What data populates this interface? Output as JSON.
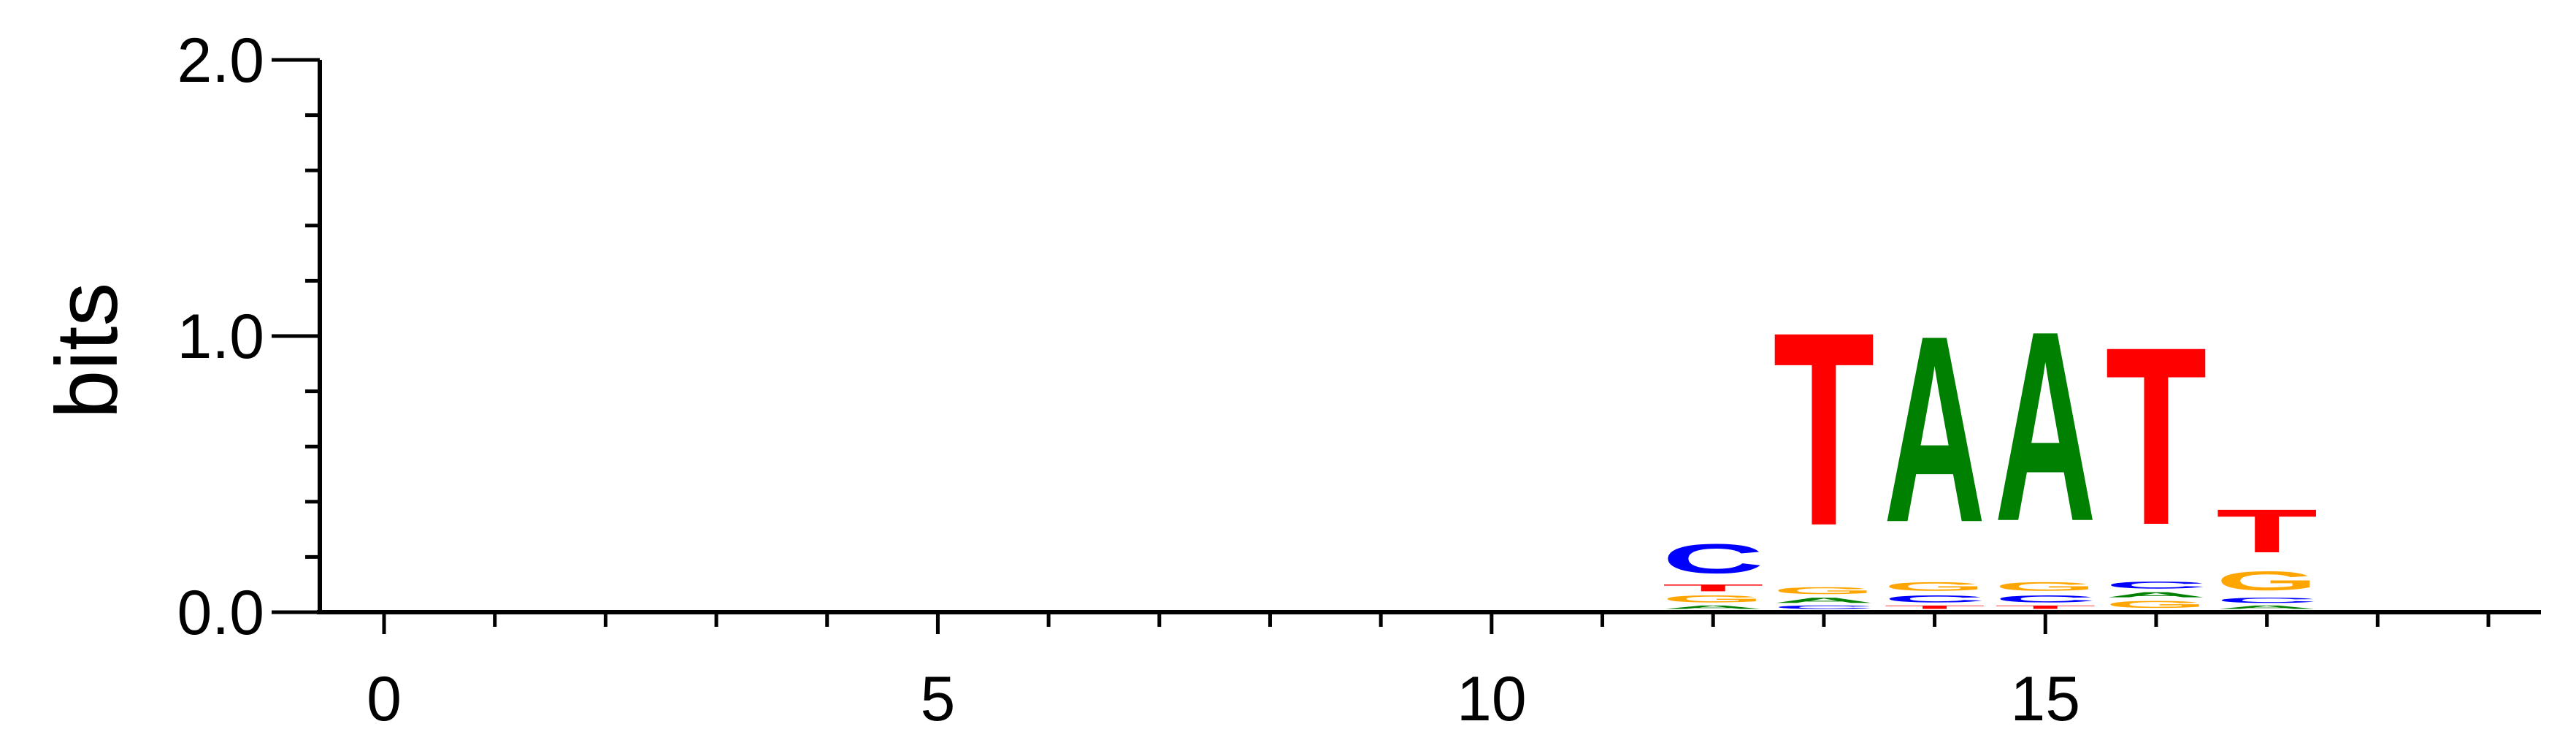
{
  "chart_data": {
    "type": "sequence-logo",
    "title": "",
    "xlabel": "",
    "ylabel": "bits",
    "ylim": [
      0,
      2
    ],
    "xlim": [
      -0.5,
      19
    ],
    "y_ticks": [
      0,
      1,
      2
    ],
    "y_tick_labels": [
      "0.0",
      "1.0",
      "2.0"
    ],
    "y_minor_step": 0.2,
    "x_ticks": [
      0,
      5,
      10,
      15
    ],
    "x_tick_labels": [
      "0",
      "5",
      "10",
      "15"
    ],
    "x_minor_step": 1,
    "grid": false,
    "colors": {
      "A": "#008000",
      "C": "#0000ff",
      "G": "#ffa500",
      "T": "#ff0000"
    },
    "positions": [
      {
        "x": 12,
        "stack": [
          {
            "letter": "A",
            "bits": 0.02
          },
          {
            "letter": "G",
            "bits": 0.04
          },
          {
            "letter": "T",
            "bits": 0.04
          },
          {
            "letter": "C",
            "bits": 0.17
          }
        ]
      },
      {
        "x": 13,
        "stack": [
          {
            "letter": "C",
            "bits": 0.02
          },
          {
            "letter": "A",
            "bits": 0.03
          },
          {
            "letter": "G",
            "bits": 0.04
          },
          {
            "letter": "T",
            "bits": 1.12
          }
        ]
      },
      {
        "x": 14,
        "stack": [
          {
            "letter": "T",
            "bits": 0.02
          },
          {
            "letter": "C",
            "bits": 0.04
          },
          {
            "letter": "G",
            "bits": 0.05
          },
          {
            "letter": "A",
            "bits": 1.08
          }
        ]
      },
      {
        "x": 15,
        "stack": [
          {
            "letter": "T",
            "bits": 0.02
          },
          {
            "letter": "C",
            "bits": 0.04
          },
          {
            "letter": "G",
            "bits": 0.05
          },
          {
            "letter": "A",
            "bits": 1.1
          }
        ]
      },
      {
        "x": 16,
        "stack": [
          {
            "letter": "G",
            "bits": 0.04
          },
          {
            "letter": "A",
            "bits": 0.03
          },
          {
            "letter": "C",
            "bits": 0.04
          },
          {
            "letter": "T",
            "bits": 1.03
          }
        ]
      },
      {
        "x": 17,
        "stack": [
          {
            "letter": "A",
            "bits": 0.02
          },
          {
            "letter": "C",
            "bits": 0.03
          },
          {
            "letter": "G",
            "bits": 0.11
          },
          {
            "letter": "T",
            "bits": 0.25
          }
        ]
      }
    ]
  }
}
